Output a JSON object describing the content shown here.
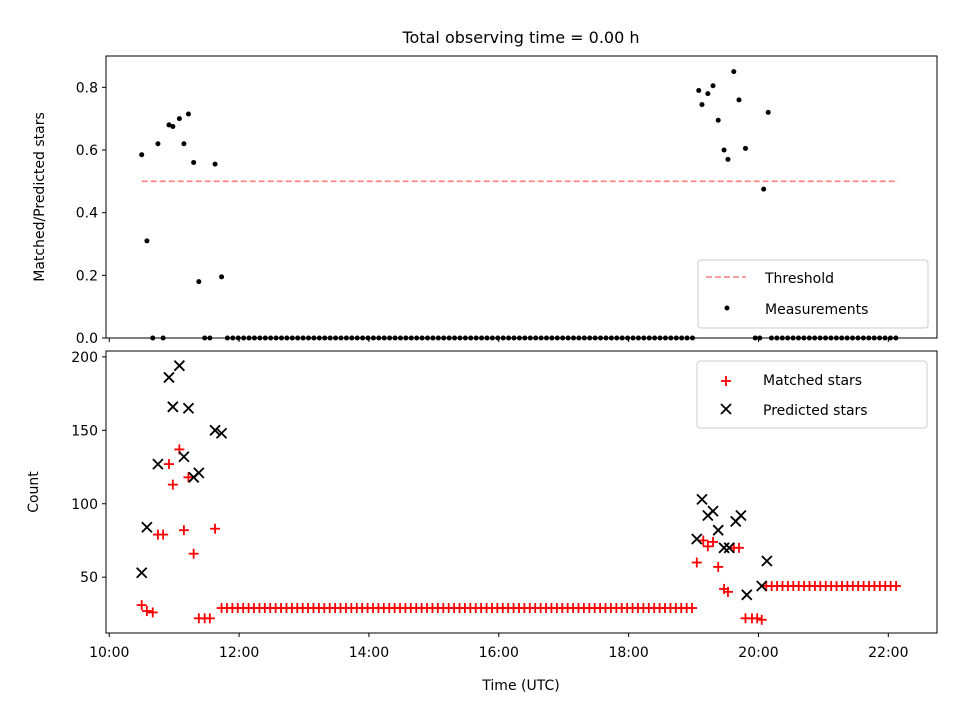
{
  "chart_data": [
    {
      "type": "scatter",
      "title": "Total observing time = 0.00 h",
      "xlabel": "",
      "ylabel": "Matched/Predicted stars",
      "ylim": [
        0,
        0.9
      ],
      "xlim": [
        9.95,
        22.75
      ],
      "y_ticks": [
        0,
        0.2,
        0.4,
        0.6,
        0.8
      ],
      "y_tick_labels": [
        "0.0",
        "0.2",
        "0.4",
        "0.6",
        "0.8"
      ],
      "threshold": {
        "name": "Threshold",
        "y": 0.5,
        "x_range": [
          10.5,
          22.15
        ],
        "color": "#ff7f7f"
      },
      "measurements": {
        "name": "Measurements",
        "color": "#000000",
        "x": [
          10.5,
          10.58,
          10.67,
          10.75,
          10.83,
          10.92,
          10.98,
          11.08,
          11.15,
          11.22,
          11.3,
          11.38,
          11.47,
          11.55,
          11.63,
          11.73,
          19.08,
          19.13,
          19.22,
          19.3,
          19.38,
          19.47,
          19.53,
          19.62,
          19.7,
          19.8,
          19.95,
          20.02,
          20.08,
          20.15
        ],
        "y": [
          0.585,
          0.31,
          0,
          0.62,
          0,
          0.68,
          0.675,
          0.7,
          0.62,
          0.715,
          0.56,
          0.18,
          0,
          0,
          0.555,
          0.195,
          0.79,
          0.745,
          0.78,
          0.805,
          0.695,
          0.6,
          0.57,
          0.85,
          0.76,
          0.605,
          0,
          0,
          0.475,
          0.72
        ],
        "zero_runs": [
          [
            11.82,
            19.0,
            0.0833
          ],
          [
            20.2,
            22.15,
            0.0833
          ]
        ]
      },
      "legend": {
        "position": "lower right",
        "entries": [
          "Threshold",
          "Measurements"
        ]
      }
    },
    {
      "type": "scatter",
      "title": "",
      "xlabel": "Time (UTC)",
      "ylabel": "Count",
      "ylim": [
        12,
        204
      ],
      "xlim": [
        9.95,
        22.75
      ],
      "y_ticks": [
        50,
        100,
        150,
        200
      ],
      "y_tick_labels": [
        "50",
        "100",
        "150",
        "200"
      ],
      "x_ticks": [
        10,
        12,
        14,
        16,
        18,
        20,
        22
      ],
      "x_tick_labels": [
        "10:00",
        "12:00",
        "14:00",
        "16:00",
        "18:00",
        "20:00",
        "22:00"
      ],
      "series": [
        {
          "name": "Matched stars",
          "marker": "plus",
          "color": "#ff0000",
          "x": [
            10.5,
            10.58,
            10.67,
            10.75,
            10.83,
            10.92,
            10.98,
            11.08,
            11.15,
            11.22,
            11.3,
            11.38,
            11.47,
            11.55,
            11.63,
            19.05,
            19.15,
            19.22,
            19.3,
            19.38,
            19.47,
            19.53,
            19.62,
            19.7,
            19.8,
            19.9,
            19.98,
            20.05
          ],
          "y": [
            31,
            27,
            26,
            79,
            79,
            127,
            113,
            137,
            82,
            118,
            66,
            22,
            22,
            22,
            83,
            60,
            75,
            71,
            74,
            57,
            42,
            40,
            70,
            70,
            22,
            22,
            22,
            21
          ],
          "runs": [
            [
              11.73,
              19.0,
              0.0833,
              29
            ],
            [
              20.12,
              22.15,
              0.0833,
              44
            ]
          ]
        },
        {
          "name": "Predicted stars",
          "marker": "x",
          "color": "#000000",
          "x": [
            10.5,
            10.58,
            10.75,
            10.92,
            10.98,
            11.08,
            11.15,
            11.22,
            11.3,
            11.38,
            11.63,
            11.73,
            19.05,
            19.13,
            19.22,
            19.3,
            19.38,
            19.47,
            19.55,
            19.65,
            19.73,
            19.82,
            20.05,
            20.13
          ],
          "y": [
            53,
            84,
            127,
            186,
            166,
            194,
            132,
            165,
            118,
            121,
            150,
            148,
            76,
            103,
            92,
            95,
            82,
            70,
            70,
            88,
            92,
            38,
            44,
            61
          ]
        }
      ],
      "legend": {
        "position": "upper right",
        "entries": [
          "Matched stars",
          "Predicted stars"
        ]
      }
    }
  ]
}
